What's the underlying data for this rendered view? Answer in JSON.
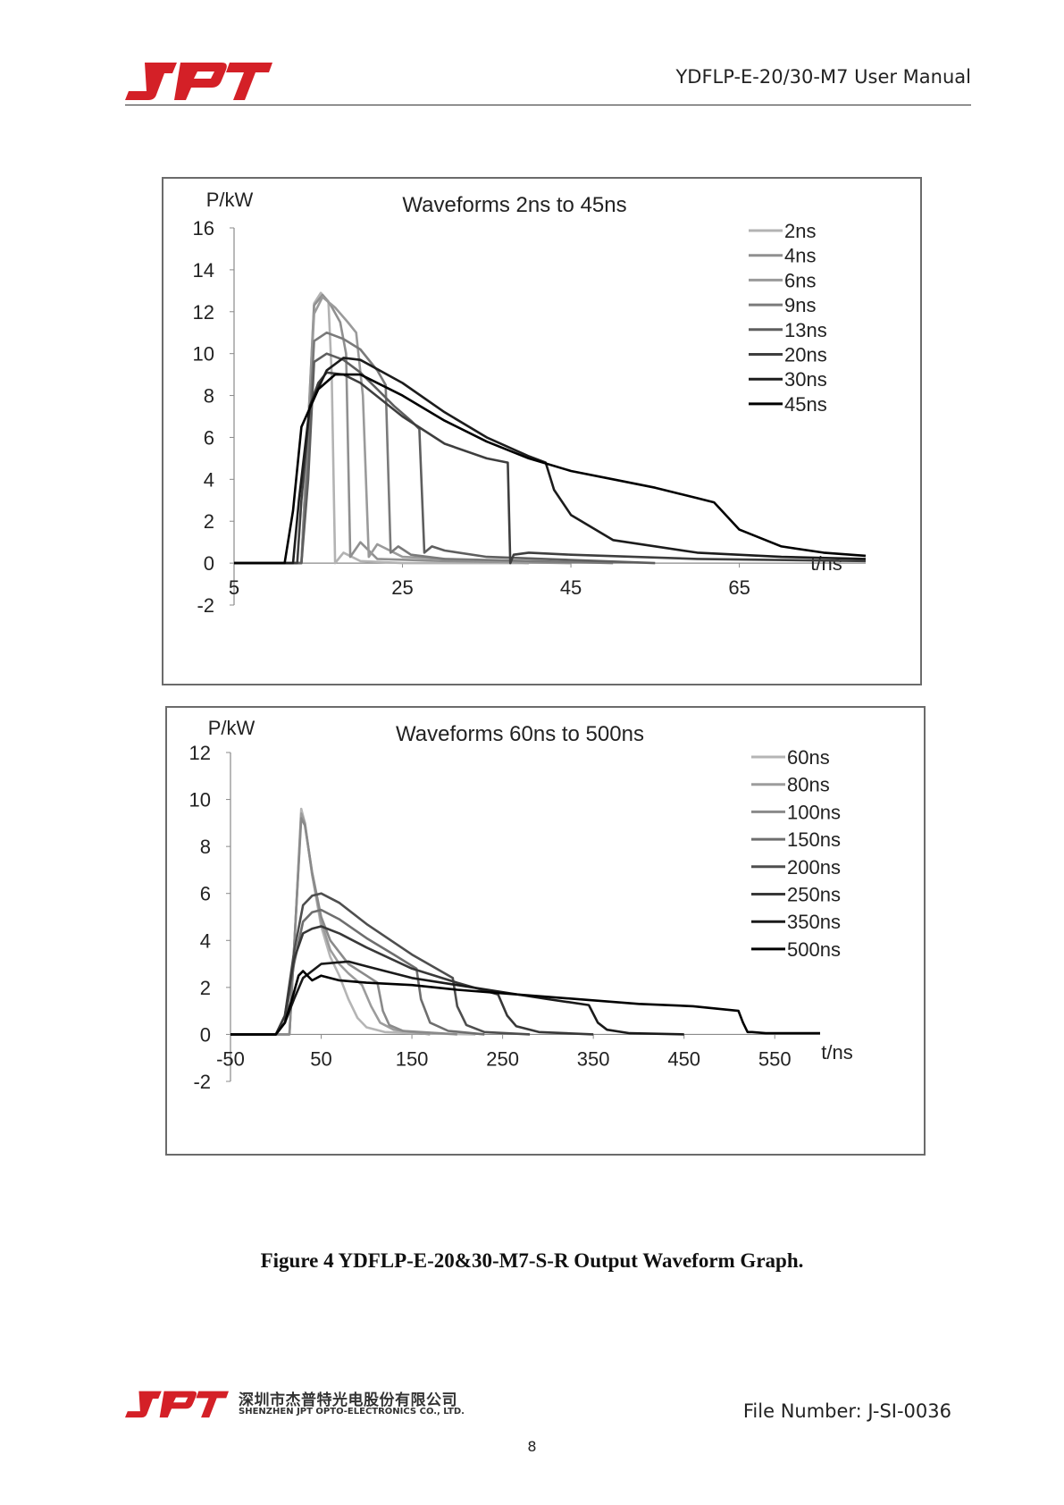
{
  "header": {
    "logo_text": "JPT",
    "title": "YDFLP-E-20/30-M7 User Manual"
  },
  "caption": "Figure 4 YDFLP-E-20&30-M7-S-R Output Waveform Graph.",
  "footer": {
    "company_cn": "深圳市杰普特光电股份有限公司",
    "company_en": "SHENZHEN JPT OPTO-ELECTRONICS CO., LTD.",
    "file_number": "File Number: J-SI-0036",
    "page_number": "8"
  },
  "colors": {
    "brand_red": "#d42027",
    "axis": "#8a8a8a",
    "frame": "#6b6b6b"
  },
  "chart_data": [
    {
      "type": "line",
      "title": "Waveforms 2ns to 45ns",
      "ylabel": "P/kW",
      "xlabel": "t/ns",
      "xlim": [
        5,
        80
      ],
      "ylim": [
        -2,
        16
      ],
      "xticks": [
        5,
        25,
        45,
        65
      ],
      "yticks": [
        16,
        14,
        12,
        10,
        8,
        6,
        4,
        2,
        0,
        -2
      ],
      "legend_position": "top-right",
      "series": [
        {
          "name": "2ns",
          "color": "#b3b3b3",
          "x": [
            5,
            13,
            13.6,
            14.5,
            15.3,
            16.2,
            16.6,
            17,
            18,
            20,
            25,
            40
          ],
          "y": [
            0,
            0,
            5,
            12.4,
            12.9,
            12.5,
            9,
            0,
            0.5,
            0.1,
            0,
            0
          ]
        },
        {
          "name": "4ns",
          "color": "#909090",
          "x": [
            5,
            13,
            13.6,
            14.5,
            15.5,
            16.5,
            17.6,
            18.3,
            18.8,
            20,
            22,
            30,
            45
          ],
          "y": [
            0,
            0,
            5,
            12.3,
            12.8,
            12.3,
            11.5,
            10,
            0.3,
            1.0,
            0.2,
            0.1,
            0
          ]
        },
        {
          "name": "6ns",
          "color": "#9a9a9a",
          "x": [
            5,
            13,
            13.6,
            14.5,
            15.5,
            17,
            18.5,
            19.5,
            20.3,
            21,
            22,
            25,
            40
          ],
          "y": [
            0,
            0,
            5,
            11.9,
            12.7,
            12.2,
            11.5,
            11.0,
            8,
            0.3,
            0.9,
            0.3,
            0
          ]
        },
        {
          "name": "9ns",
          "color": "#7a7a7a",
          "x": [
            5,
            13,
            13.6,
            14.5,
            16,
            18,
            20,
            22,
            23,
            23.6,
            24.5,
            26,
            30,
            50
          ],
          "y": [
            0,
            0,
            4,
            10.6,
            11.0,
            10.7,
            10.2,
            9.2,
            8.5,
            0.5,
            0.8,
            0.4,
            0.2,
            0
          ]
        },
        {
          "name": "13ns",
          "color": "#5e5e5e",
          "x": [
            5,
            13,
            13.8,
            14.5,
            16,
            18,
            20,
            22,
            24,
            26,
            27,
            27.6,
            28.5,
            30,
            35,
            55
          ],
          "y": [
            0,
            0,
            4,
            9.6,
            10.0,
            9.7,
            9.1,
            8.3,
            7.5,
            6.8,
            6.4,
            0.5,
            0.8,
            0.6,
            0.3,
            0
          ]
        },
        {
          "name": "20ns",
          "color": "#3e3e3e",
          "x": [
            5,
            12.5,
            13,
            14,
            15,
            16,
            18,
            20,
            25,
            30,
            35,
            37.5,
            37.8,
            38.2,
            40,
            45,
            60,
            80
          ],
          "y": [
            0,
            0,
            3,
            7.5,
            8.6,
            9.1,
            9.0,
            8.6,
            7.0,
            5.7,
            5.0,
            4.8,
            0,
            0.4,
            0.5,
            0.4,
            0.2,
            0.1
          ]
        },
        {
          "name": "30ns",
          "color": "#1c1c1c",
          "x": [
            5,
            12,
            12.7,
            14,
            16,
            18,
            20,
            25,
            30,
            35,
            40,
            42,
            43,
            45,
            50,
            60,
            70,
            80
          ],
          "y": [
            0,
            0,
            3,
            7.5,
            9.2,
            9.8,
            9.7,
            8.6,
            7.2,
            6.0,
            5.1,
            4.8,
            3.5,
            2.3,
            1.1,
            0.5,
            0.3,
            0.2
          ]
        },
        {
          "name": "45ns",
          "color": "#000000",
          "x": [
            5,
            11,
            12,
            13,
            15,
            17,
            20,
            25,
            30,
            35,
            40,
            45,
            50,
            55,
            58,
            60,
            62,
            65,
            70,
            75,
            80
          ],
          "y": [
            0,
            0,
            2.5,
            6.5,
            8.3,
            9.0,
            9.0,
            8.0,
            6.8,
            5.8,
            5.0,
            4.4,
            4.0,
            3.6,
            3.3,
            3.1,
            2.9,
            1.6,
            0.8,
            0.5,
            0.35
          ]
        }
      ]
    },
    {
      "type": "line",
      "title": "Waveforms 60ns to 500ns",
      "ylabel": "P/kW",
      "xlabel": "t/ns",
      "xlim": [
        -50,
        600
      ],
      "ylim": [
        -2,
        12
      ],
      "xticks": [
        -50,
        50,
        150,
        250,
        350,
        450,
        550
      ],
      "yticks": [
        12,
        10,
        8,
        6,
        4,
        2,
        0,
        -2
      ],
      "legend_position": "top-right",
      "series": [
        {
          "name": "60ns",
          "color": "#b5b5b5",
          "x": [
            -50,
            15,
            22,
            28,
            32,
            40,
            50,
            60,
            70,
            80,
            90,
            100,
            120,
            150,
            220
          ],
          "y": [
            0,
            0,
            5,
            9.6,
            9.0,
            6.8,
            4.6,
            3.3,
            2.5,
            1.5,
            0.7,
            0.3,
            0.1,
            0.05,
            0
          ]
        },
        {
          "name": "80ns",
          "color": "#9c9c9c",
          "x": [
            -50,
            15,
            22,
            28,
            32,
            40,
            50,
            60,
            70,
            80,
            95,
            105,
            115,
            130,
            170
          ],
          "y": [
            0,
            0,
            5,
            9.4,
            9.0,
            6.8,
            4.8,
            3.6,
            3.0,
            2.6,
            2.1,
            1.2,
            0.5,
            0.2,
            0
          ]
        },
        {
          "name": "100ns",
          "color": "#8a8a8a",
          "x": [
            -50,
            15,
            22,
            28,
            32,
            40,
            50,
            60,
            80,
            100,
            112,
            118,
            125,
            140,
            200
          ],
          "y": [
            0,
            0,
            5,
            9.2,
            8.9,
            6.9,
            5.0,
            4.0,
            3.0,
            2.5,
            2.2,
            1.0,
            0.4,
            0.15,
            0
          ]
        },
        {
          "name": "150ns",
          "color": "#6e6e6e",
          "x": [
            -50,
            0,
            10,
            20,
            30,
            40,
            50,
            70,
            100,
            130,
            155,
            160,
            170,
            190,
            230
          ],
          "y": [
            0,
            0,
            0.5,
            3,
            4.8,
            5.2,
            5.3,
            4.9,
            4.1,
            3.4,
            2.8,
            1.5,
            0.5,
            0.15,
            0
          ]
        },
        {
          "name": "200ns",
          "color": "#4e4e4e",
          "x": [
            -50,
            0,
            10,
            20,
            30,
            40,
            50,
            70,
            100,
            150,
            195,
            200,
            210,
            230,
            280
          ],
          "y": [
            0,
            0,
            0.8,
            3.5,
            5.5,
            5.9,
            6.0,
            5.6,
            4.7,
            3.4,
            2.4,
            1.2,
            0.4,
            0.1,
            0
          ]
        },
        {
          "name": "250ns",
          "color": "#383838",
          "x": [
            -50,
            0,
            10,
            20,
            30,
            40,
            50,
            70,
            100,
            150,
            200,
            245,
            255,
            265,
            290,
            350
          ],
          "y": [
            0,
            0,
            0.8,
            3.2,
            4.3,
            4.5,
            4.6,
            4.3,
            3.7,
            2.8,
            2.2,
            1.7,
            0.8,
            0.35,
            0.1,
            0
          ]
        },
        {
          "name": "350ns",
          "color": "#1a1a1a",
          "x": [
            -50,
            0,
            10,
            20,
            30,
            50,
            80,
            100,
            150,
            200,
            250,
            300,
            345,
            355,
            365,
            390,
            450
          ],
          "y": [
            0,
            0,
            0.5,
            1.5,
            2.4,
            3.0,
            3.1,
            2.9,
            2.4,
            2.1,
            1.8,
            1.5,
            1.25,
            0.5,
            0.2,
            0.05,
            0
          ]
        },
        {
          "name": "500ns",
          "color": "#000000",
          "x": [
            -50,
            0,
            10,
            20,
            25,
            30,
            40,
            50,
            70,
            100,
            150,
            200,
            300,
            400,
            460,
            510,
            515,
            520,
            525,
            540,
            600
          ],
          "y": [
            0,
            0,
            0.5,
            1.8,
            2.5,
            2.7,
            2.3,
            2.5,
            2.3,
            2.2,
            2.1,
            1.9,
            1.6,
            1.3,
            1.2,
            1.0,
            0.5,
            0.1,
            0.1,
            0.05,
            0.05
          ]
        }
      ]
    }
  ]
}
